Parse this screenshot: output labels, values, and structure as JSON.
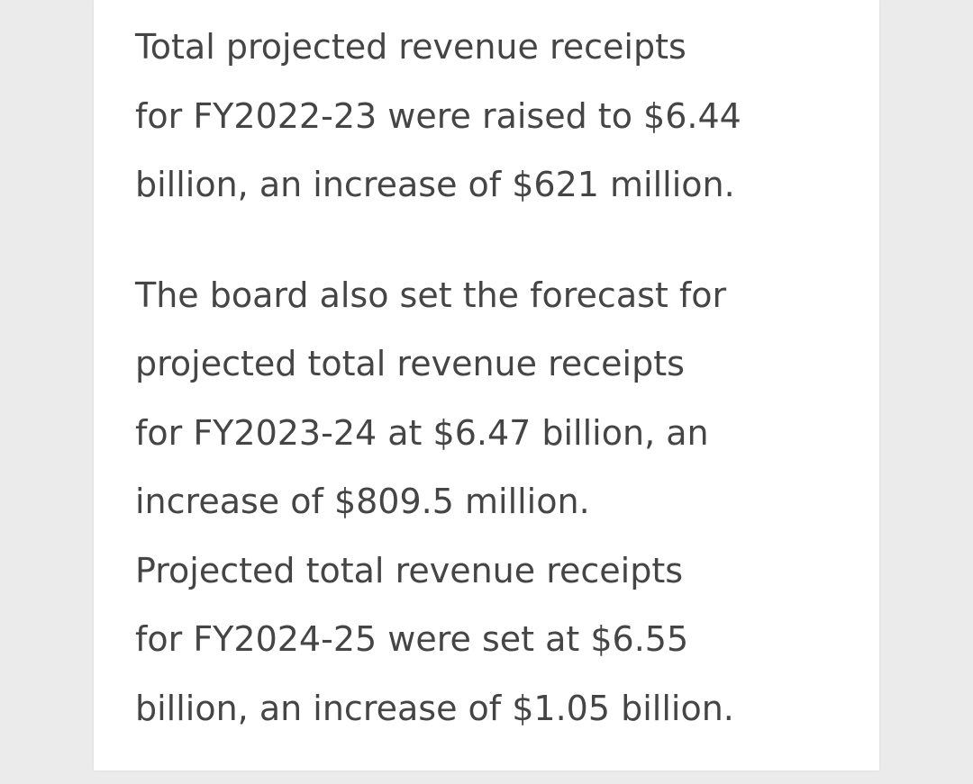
{
  "article": {
    "paragraphs": [
      [
        "Total projected revenue receipts",
        "for FY2022-23 were raised to $6.44",
        "billion, an increase of $621 million."
      ],
      [
        "The board also set the forecast for",
        "projected total revenue receipts",
        "for FY2023-24 at $6.47 billion, an",
        "increase of $809.5 million.",
        "Projected total revenue receipts",
        "for FY2024-25 were set at $6.55",
        "billion, an increase of $1.05 billion."
      ]
    ]
  }
}
